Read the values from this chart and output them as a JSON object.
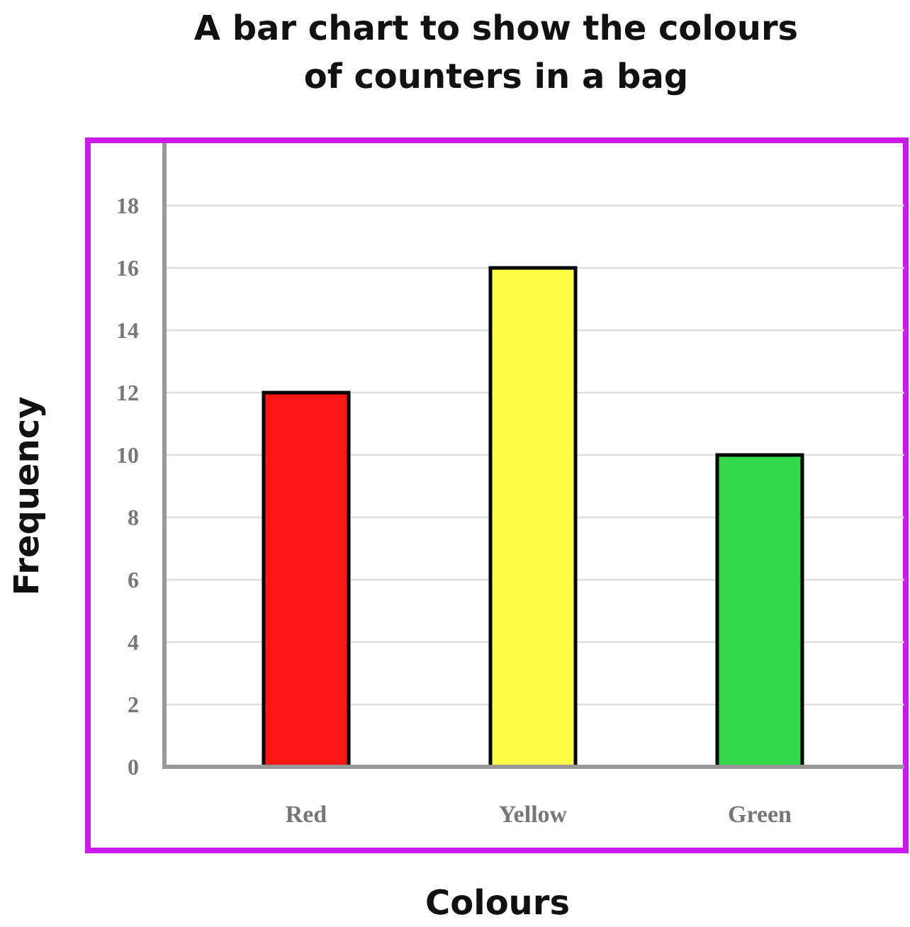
{
  "chart_data": {
    "type": "bar",
    "title": "A bar chart to show the colours\nof counters in a bag",
    "xlabel": "Colours",
    "ylabel": "Frequency",
    "categories": [
      "Red",
      "Yellow",
      "Green"
    ],
    "values": [
      12,
      16,
      10
    ],
    "colors": [
      "#fe1616",
      "#fefe47",
      "#33d94a"
    ],
    "ylim": [
      0,
      20
    ],
    "yticks": [
      0,
      2,
      4,
      6,
      8,
      10,
      12,
      14,
      16,
      18
    ],
    "grid": "y"
  }
}
